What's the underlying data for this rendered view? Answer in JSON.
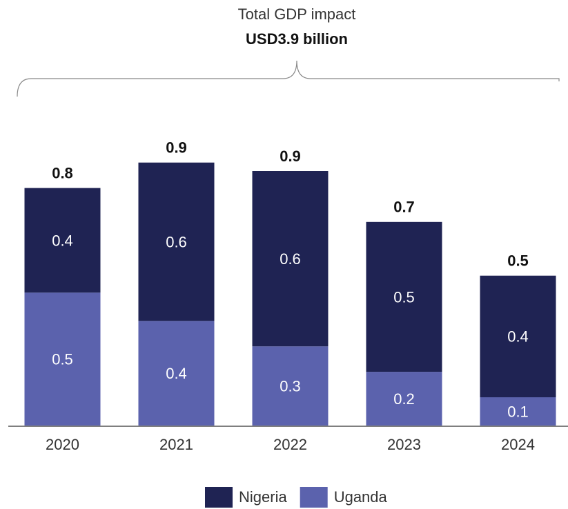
{
  "chart_data": {
    "type": "stacked_bar",
    "annotation": {
      "title": "Total GDP impact",
      "subtitle": "USD3.9 billion"
    },
    "categories": [
      "2020",
      "2021",
      "2022",
      "2023",
      "2024"
    ],
    "series": [
      {
        "name": "Nigeria",
        "color": "#1f2353",
        "values": [
          0.37,
          0.56,
          0.62,
          0.53,
          0.43
        ],
        "value_labels": [
          "0.4",
          "0.6",
          "0.6",
          "0.5",
          "0.4"
        ]
      },
      {
        "name": "Uganda",
        "color": "#5b62ad",
        "values": [
          0.47,
          0.37,
          0.28,
          0.19,
          0.1
        ],
        "value_labels": [
          "0.5",
          "0.4",
          "0.3",
          "0.2",
          "0.1"
        ]
      }
    ],
    "totals": {
      "values": [
        0.84,
        0.93,
        0.9,
        0.72,
        0.53
      ],
      "value_labels": [
        "0.8",
        "0.9",
        "0.9",
        "0.7",
        "0.5"
      ]
    },
    "ylim": [
      0,
      1
    ]
  }
}
